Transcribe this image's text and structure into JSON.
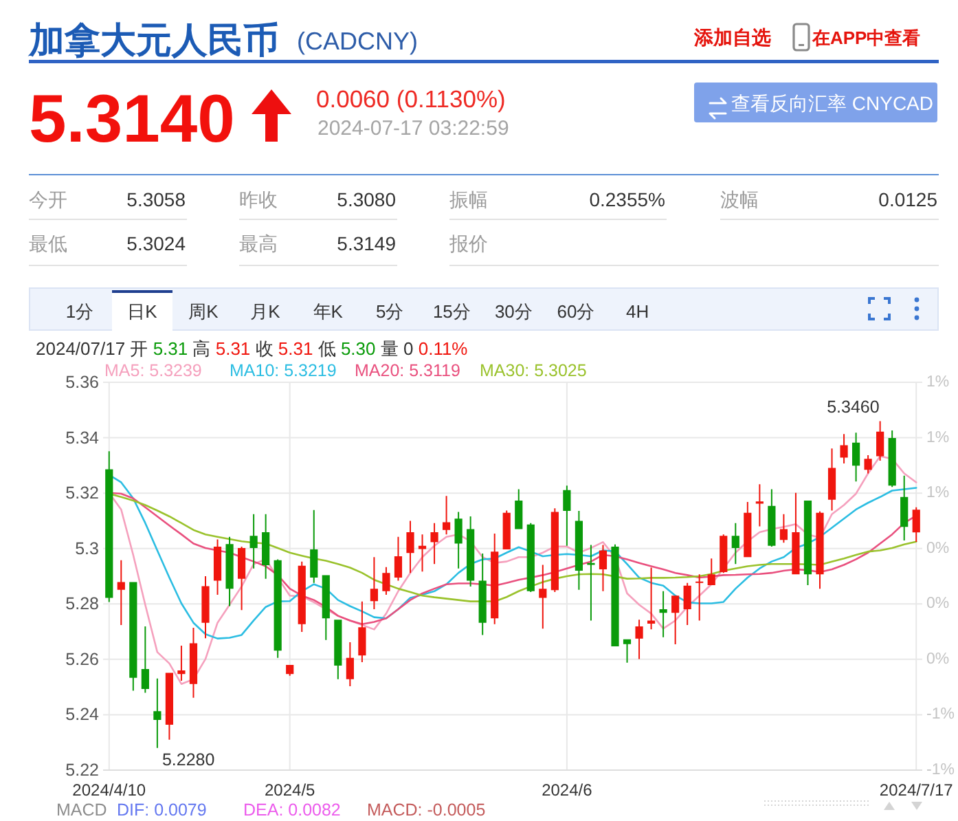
{
  "chart_data": {
    "type": "candlestick",
    "title": "加拿大元人民币",
    "subtitle": "(CADCNY)",
    "categories": [
      "2024/4/10",
      null,
      null,
      null,
      null,
      null,
      null,
      null,
      null,
      null,
      null,
      null,
      null,
      null,
      null,
      "2024/5",
      null,
      null,
      null,
      null,
      null,
      null,
      null,
      null,
      null,
      null,
      null,
      null,
      null,
      null,
      null,
      null,
      null,
      null,
      null,
      null,
      null,
      null,
      "2024/6",
      null,
      null,
      null,
      null,
      null,
      null,
      null,
      null,
      null,
      null,
      null,
      null,
      null,
      null,
      null,
      null,
      null,
      null,
      null,
      null,
      null,
      null,
      null,
      null,
      null,
      null,
      null,
      null,
      "2024/7/17"
    ],
    "ohlc": [
      [
        5.3286,
        5.3351,
        5.2807,
        5.2822
      ],
      [
        5.2851,
        5.2958,
        5.2724,
        5.2879
      ],
      [
        5.2879,
        5.2879,
        5.2487,
        5.2533
      ],
      [
        5.2565,
        5.2719,
        5.2479,
        5.2493
      ],
      [
        5.2413,
        5.2531,
        5.228,
        5.2381
      ],
      [
        5.2364,
        5.2551,
        5.231,
        5.2551
      ],
      [
        5.2547,
        5.2649,
        5.2523,
        5.256
      ],
      [
        5.2511,
        5.2714,
        5.2461,
        5.2658
      ],
      [
        5.2732,
        5.29,
        5.2676,
        5.2864
      ],
      [
        5.2884,
        5.3033,
        5.2833,
        5.3007
      ],
      [
        5.3016,
        5.3042,
        5.2792,
        5.2855
      ],
      [
        5.2891,
        5.3007,
        5.2778,
        5.3002
      ],
      [
        5.3046,
        5.3124,
        5.2928,
        5.3002
      ],
      [
        5.3059,
        5.3124,
        5.2891,
        5.294
      ],
      [
        5.2958,
        5.2961,
        5.2605,
        5.2631
      ],
      [
        5.2547,
        5.258,
        5.2541,
        5.258
      ],
      [
        5.2727,
        5.2953,
        5.2699,
        5.2938
      ],
      [
        5.2997,
        5.3139,
        5.2876,
        5.2895
      ],
      [
        5.2904,
        5.2904,
        5.267,
        5.2748
      ],
      [
        5.2743,
        5.2743,
        5.2528,
        5.2577
      ],
      [
        5.2528,
        5.2662,
        5.2503,
        5.2605
      ],
      [
        5.2614,
        5.2809,
        5.259,
        5.2716
      ],
      [
        5.281,
        5.2969,
        5.2781,
        5.2855
      ],
      [
        5.2846,
        5.2933,
        5.2833,
        5.2912
      ],
      [
        5.2895,
        5.3042,
        5.2884,
        5.2972
      ],
      [
        5.2984,
        5.31,
        5.2912,
        5.3059
      ],
      [
        5.2998,
        5.3051,
        5.2917,
        5.301
      ],
      [
        5.3023,
        5.3092,
        5.2944,
        5.3059
      ],
      [
        5.3067,
        5.319,
        5.3051,
        5.3095
      ],
      [
        5.3108,
        5.3132,
        5.2928,
        5.3018
      ],
      [
        5.307,
        5.3116,
        5.2863,
        5.2884
      ],
      [
        5.2884,
        5.2982,
        5.2688,
        5.2732
      ],
      [
        5.2748,
        5.3054,
        5.2727,
        5.2989
      ],
      [
        5.2997,
        5.3137,
        5.2997,
        5.3129
      ],
      [
        5.3173,
        5.3214,
        5.307,
        5.307
      ],
      [
        5.3087,
        5.3092,
        5.2843,
        5.2846
      ],
      [
        5.2822,
        5.2941,
        5.2711,
        5.2855
      ],
      [
        5.285,
        5.3145,
        5.2843,
        5.3132
      ],
      [
        5.3211,
        5.3227,
        5.301,
        5.3136
      ],
      [
        5.31,
        5.3136,
        5.2851,
        5.292
      ],
      [
        5.2948,
        5.3013,
        5.274,
        5.2941
      ],
      [
        5.2925,
        5.3013,
        5.2846,
        5.2993
      ],
      [
        5.3007,
        5.3015,
        5.2647,
        5.2647
      ],
      [
        5.2672,
        5.2672,
        5.2588,
        5.2655
      ],
      [
        5.2675,
        5.2743,
        5.2601,
        5.2719
      ],
      [
        5.2729,
        5.2931,
        5.2708,
        5.274
      ],
      [
        5.2781,
        5.2846,
        5.268,
        5.2768
      ],
      [
        5.2768,
        5.283,
        5.2654,
        5.283
      ],
      [
        5.2781,
        5.2876,
        5.2724,
        5.2866
      ],
      [
        5.2876,
        5.2907,
        5.274,
        5.2881
      ],
      [
        5.2868,
        5.2964,
        5.2868,
        5.2907
      ],
      [
        5.2915,
        5.3051,
        5.2912,
        5.3046
      ],
      [
        5.3046,
        5.3092,
        5.2944,
        5.3002
      ],
      [
        5.2969,
        5.3168,
        5.2969,
        5.3129
      ],
      [
        5.3162,
        5.3232,
        5.308,
        5.317
      ],
      [
        5.3154,
        5.3214,
        5.3007,
        5.301
      ],
      [
        5.3031,
        5.3124,
        5.3021,
        5.307
      ],
      [
        5.2907,
        5.3201,
        5.2907,
        5.3059
      ],
      [
        5.3173,
        5.3173,
        5.2868,
        5.2907
      ],
      [
        5.2907,
        5.3134,
        5.2855,
        5.3129
      ],
      [
        5.3176,
        5.3361,
        5.3137,
        5.3291
      ],
      [
        5.3328,
        5.3413,
        5.3307,
        5.3373
      ],
      [
        5.3382,
        5.3418,
        5.3242,
        5.3299
      ],
      [
        5.3284,
        5.3337,
        5.3271,
        5.3324
      ],
      [
        5.3333,
        5.346,
        5.3317,
        5.3422
      ],
      [
        5.3399,
        5.3426,
        5.3222,
        5.3227
      ],
      [
        5.3186,
        5.3263,
        5.3029,
        5.3078
      ],
      [
        5.3058,
        5.3149,
        5.3024,
        5.314
      ]
    ],
    "colors": [
      "#0a9b0a",
      "#f0160e",
      "#0a9b0a",
      "#0a9b0a",
      "#0a9b0a",
      "#f0160e",
      "#f0160e",
      "#f0160e",
      "#f0160e",
      "#f0160e",
      "#0a9b0a",
      "#f0160e",
      "#0a9b0a",
      "#0a9b0a",
      "#0a9b0a",
      "#f0160e",
      "#f0160e",
      "#0a9b0a",
      "#0a9b0a",
      "#0a9b0a",
      "#f0160e",
      "#f0160e",
      "#f0160e",
      "#f0160e",
      "#f0160e",
      "#f0160e",
      "#f0160e",
      "#f0160e",
      "#f0160e",
      "#0a9b0a",
      "#0a9b0a",
      "#0a9b0a",
      "#f0160e",
      "#f0160e",
      "#0a9b0a",
      "#0a9b0a",
      "#f0160e",
      "#f0160e",
      "#0a9b0a",
      "#0a9b0a",
      "#0a9b0a",
      "#f0160e",
      "#0a9b0a",
      "#0a9b0a",
      "#f0160e",
      "#f0160e",
      "#0a9b0a",
      "#f0160e",
      "#f0160e",
      "#f0160e",
      "#f0160e",
      "#f0160e",
      "#0a9b0a",
      "#f0160e",
      "#f0160e",
      "#0a9b0a",
      "#f0160e",
      "#f0160e",
      "#0a9b0a",
      "#f0160e",
      "#f0160e",
      "#f0160e",
      "#0a9b0a",
      "#f0160e",
      "#f0160e",
      "#0a9b0a",
      "#0a9b0a",
      "#f0160e"
    ],
    "series": [
      {
        "type": "line",
        "name": "MA5: 5.3239",
        "color": "#f5a0bd",
        "values": [
          5.3201,
          5.3141,
          5.2977,
          5.2797,
          5.2626,
          5.2585,
          5.2511,
          5.2528,
          5.2601,
          5.2732,
          5.2797,
          5.2863,
          5.2944,
          5.2961,
          5.2895,
          5.283,
          5.2827,
          5.2806,
          5.2781,
          5.2757,
          5.274,
          5.2724,
          5.2708,
          5.2765,
          5.2846,
          5.2912,
          5.2969,
          5.301,
          5.3042,
          5.3051,
          5.3026,
          5.2969,
          5.2948,
          5.2953,
          5.2969,
          5.2969,
          5.2985,
          5.3007,
          5.3007,
          5.2985,
          5.3002,
          5.3023,
          5.2969,
          5.2838,
          5.2797,
          5.2765,
          5.2711,
          5.274,
          5.2789,
          5.283,
          5.2871,
          5.2928,
          5.2985,
          5.3026,
          5.3059,
          5.307,
          5.3078,
          5.3088,
          5.3051,
          5.3039,
          5.3124,
          5.3157,
          5.3198,
          5.3271,
          5.3333,
          5.3324,
          5.3271,
          5.3239
        ]
      },
      {
        "type": "line",
        "name": "MA10: 5.3219",
        "color": "#2bbde2",
        "values": [
          5.3266,
          5.3239,
          5.3181,
          5.3092,
          5.2993,
          5.2895,
          5.2802,
          5.2732,
          5.2691,
          5.2675,
          5.2678,
          5.2688,
          5.274,
          5.2789,
          5.2809,
          5.281,
          5.2846,
          5.2871,
          5.2855,
          5.2814,
          5.2792,
          5.2773,
          5.2752,
          5.2748,
          5.2781,
          5.2822,
          5.2833,
          5.2846,
          5.2871,
          5.2912,
          5.2944,
          5.2961,
          5.2964,
          5.2985,
          5.3005,
          5.2989,
          5.2972,
          5.2977,
          5.298,
          5.2977,
          5.2972,
          5.2993,
          5.299,
          5.2944,
          5.2895,
          5.2876,
          5.2866,
          5.283,
          5.2806,
          5.2802,
          5.2802,
          5.2807,
          5.2855,
          5.2895,
          5.2928,
          5.2953,
          5.2969,
          5.3002,
          5.3018,
          5.3042,
          5.3075,
          5.3108,
          5.3141,
          5.3165,
          5.3186,
          5.3209,
          5.3214,
          5.3219
        ]
      },
      {
        "type": "line",
        "name": "MA20: 5.3119",
        "color": "#e9507e",
        "values": [
          5.3201,
          5.3198,
          5.3181,
          5.3149,
          5.3116,
          5.3083,
          5.3051,
          5.3018,
          5.3002,
          5.2993,
          5.2985,
          5.2969,
          5.2953,
          5.2936,
          5.2904,
          5.2855,
          5.283,
          5.2814,
          5.2789,
          5.2757,
          5.274,
          5.2727,
          5.2735,
          5.2748,
          5.2781,
          5.2814,
          5.2838,
          5.2855,
          5.2871,
          5.2874,
          5.2874,
          5.2871,
          5.2866,
          5.2876,
          5.2887,
          5.2895,
          5.2904,
          5.2915,
          5.2928,
          5.2941,
          5.2953,
          5.2977,
          5.2972,
          5.2961,
          5.2948,
          5.2936,
          5.2925,
          5.2912,
          5.2904,
          5.2895,
          5.2899,
          5.2904,
          5.2905,
          5.2907,
          5.2908,
          5.2912,
          5.292,
          5.2925,
          5.2922,
          5.2915,
          5.2925,
          5.2941,
          5.2961,
          5.2985,
          5.3018,
          5.3051,
          5.3092,
          5.3119
        ]
      },
      {
        "type": "line",
        "name": "MA30: 5.3025",
        "color": "#9ac22c",
        "values": [
          5.3198,
          5.3186,
          5.3173,
          5.3157,
          5.3137,
          5.3116,
          5.3092,
          5.3067,
          5.3051,
          5.3042,
          5.3034,
          5.3026,
          5.3021,
          5.3018,
          5.3002,
          5.2985,
          5.2974,
          5.2964,
          5.2956,
          5.2944,
          5.2931,
          5.2912,
          5.2887,
          5.2871,
          5.2855,
          5.2843,
          5.283,
          5.2824,
          5.2819,
          5.2814,
          5.2809,
          5.2809,
          5.2809,
          5.2825,
          5.2846,
          5.2863,
          5.2879,
          5.2891,
          5.29,
          5.2907,
          5.2908,
          5.2907,
          5.2899,
          5.2891,
          5.2892,
          5.2894,
          5.2894,
          5.2895,
          5.2897,
          5.29,
          5.2908,
          5.292,
          5.2928,
          5.2936,
          5.2941,
          5.2944,
          5.2944,
          5.2944,
          5.2943,
          5.2941,
          5.2953,
          5.2964,
          5.2977,
          5.2989,
          5.2993,
          5.3002,
          5.3015,
          5.3025
        ]
      }
    ],
    "ylim": [
      5.22,
      5.36
    ],
    "yticks": [
      5.22,
      5.24,
      5.26,
      5.28,
      5.3,
      5.32,
      5.34,
      5.36
    ],
    "y2lim": [
      -1.19,
      1.44
    ],
    "y2ticks": [
      {
        "value": -1.19,
        "label": "-1%"
      },
      {
        "value": -0.81,
        "label": "-1%"
      },
      {
        "value": -0.44,
        "label": "0%"
      },
      {
        "value": -0.06,
        "label": "0%"
      },
      {
        "value": 0.31,
        "label": "0%"
      },
      {
        "value": 0.69,
        "label": "1%"
      },
      {
        "value": 1.06,
        "label": "1%"
      },
      {
        "value": 1.44,
        "label": "1%"
      }
    ],
    "grid": true,
    "legend": "top left",
    "annotations": [
      "添加自选",
      "在APP中查看",
      "5.3140",
      "0.0060 (0.1130%)",
      "2024-07-17 03:22:59",
      "查看反向汇率 CNYCAD",
      "今开",
      "5.3058",
      "昨收",
      "5.3080",
      "振幅",
      "0.2355%",
      "波幅",
      "0.0125",
      "最低",
      "5.3024",
      "最高",
      "5.3149",
      "报价",
      "1分",
      "日K",
      "周K",
      "月K",
      "年K",
      "5分",
      "15分",
      "30分",
      "60分",
      "4H",
      "2024/07/17 开 5.31 高 5.31 收 5.31 低 5.30 量 0 0.11%",
      "MACD",
      "DIF: 0.0079",
      "DEA: 0.0082",
      "MACD: -0.0005",
      "5.2280",
      "5.3460"
    ]
  }
}
